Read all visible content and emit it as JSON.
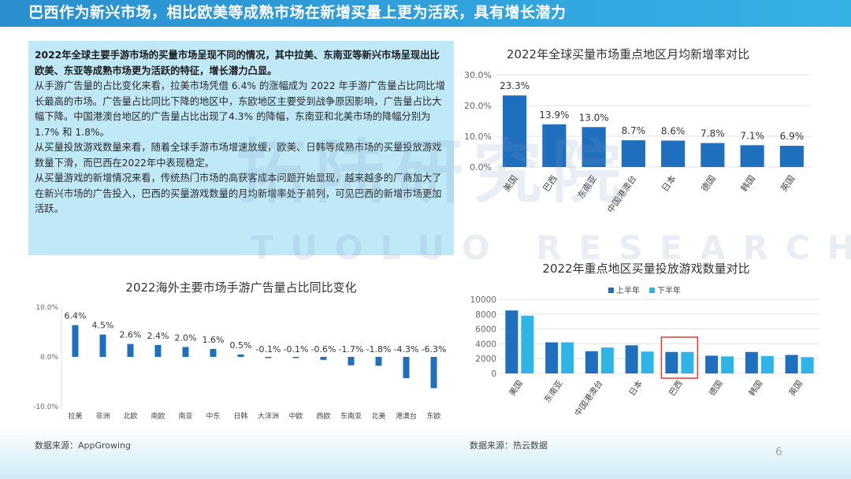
{
  "header": {
    "title": "巴西作为新兴市场，相比欧美等成熟市场在新增买量上更为活跃，具有增长潜力"
  },
  "textbox": {
    "lead": "2022年全球主要手游市场的买量市场呈现不同的情况，其中拉美、东南亚等新兴市场呈现出比欧美、东亚等成熟市场更为活跃的特征，增长潜力凸显。",
    "p1": "从手游广告量的占比变化来看，拉美市场凭借 6.4% 的涨幅成为 2022 年手游广告量占比同比增长最高的市场。广告量占比同比下降的地区中，东欧地区主要受到战争原因影响，广告量占比大幅下降。中国港澳台地区的广告量占比出现了4.3% 的降幅，东南亚和北美市场的降幅分别为 1.7% 和 1.8%。",
    "p2": "从买量投放游戏数量来看，随着全球手游市场增速放缓，欧美、日韩等成熟市场的买量投放游戏数量下滑，而巴西在2022年中表现稳定。",
    "p3": "从买量游戏的新增情况来看，传统热门市场的高获客成本问题开始显现，越来越多的厂商加大了在新兴市场的广告投入，巴西的买量游戏数量的月均新增率处于前列，可见巴西的新增市场更加活跃。"
  },
  "watermark": {
    "cn": "拓陆研究院",
    "en": "TUOLUO RESEARCH"
  },
  "sources": {
    "left": "数据来源：AppGrowing",
    "right": "数据来源：热云数据"
  },
  "page_number": "6",
  "colors": {
    "bar_dark": "#1f6fbf",
    "bar_light": "#2fb4e8",
    "highlight_box": "#e03a2f",
    "header": "#2a8fd0"
  },
  "chart_data": [
    {
      "id": "chart1",
      "type": "bar",
      "title": "2022年全球买量市场重点地区月均新增率对比",
      "categories": [
        "美国",
        "巴西",
        "东南亚",
        "中国港澳台",
        "日本",
        "德国",
        "韩国",
        "英国"
      ],
      "values": [
        23.3,
        13.9,
        13.0,
        8.7,
        8.6,
        7.8,
        7.1,
        6.9
      ],
      "value_labels": [
        "23.3%",
        "13.9%",
        "13.0%",
        "8.7%",
        "8.6%",
        "7.8%",
        "7.1%",
        "6.9%"
      ],
      "yticks": [
        "30.0%",
        "20.0%",
        "10.0%",
        "0.0%"
      ],
      "ylim": [
        0,
        30
      ]
    },
    {
      "id": "chart2",
      "type": "bar",
      "title": "2022海外主要市场手游广告量占比同比变化",
      "categories": [
        "拉美",
        "非洲",
        "北欧",
        "南欧",
        "南亚",
        "中东",
        "日韩",
        "大洋洲",
        "中欧",
        "西欧",
        "东南亚",
        "北美",
        "港澳台",
        "东欧"
      ],
      "values": [
        6.4,
        4.5,
        2.6,
        2.4,
        2.0,
        1.6,
        0.5,
        -0.1,
        -0.1,
        -0.6,
        -1.7,
        -1.8,
        -4.3,
        -6.3
      ],
      "value_labels": [
        "6.4%",
        "4.5%",
        "2.6%",
        "2.4%",
        "2.0%",
        "1.6%",
        "0.5%",
        "-0.1%",
        "-0.1%",
        "-0.6%",
        "-1.7%",
        "-1.8%",
        "-4.3%",
        "-6.3%"
      ],
      "yticks": [
        "10.0%",
        "0.0%",
        "-10.0%"
      ],
      "ylim": [
        -10,
        10
      ]
    },
    {
      "id": "chart3",
      "type": "bar",
      "title": "2022年重点地区买量投放游戏数量对比",
      "categories": [
        "美国",
        "东南亚",
        "中国港澳台",
        "日本",
        "巴西",
        "德国",
        "韩国",
        "英国"
      ],
      "series": [
        {
          "name": "上半年",
          "values": [
            8500,
            4200,
            3000,
            3800,
            2900,
            2400,
            2900,
            2500
          ]
        },
        {
          "name": "下半年",
          "values": [
            7800,
            4200,
            3500,
            2950,
            2900,
            2300,
            2350,
            2200
          ]
        }
      ],
      "yticks": [
        "10000",
        "8000",
        "6000",
        "4000",
        "2000",
        "0"
      ],
      "ylim": [
        0,
        10000
      ],
      "highlight_category": "巴西"
    }
  ]
}
